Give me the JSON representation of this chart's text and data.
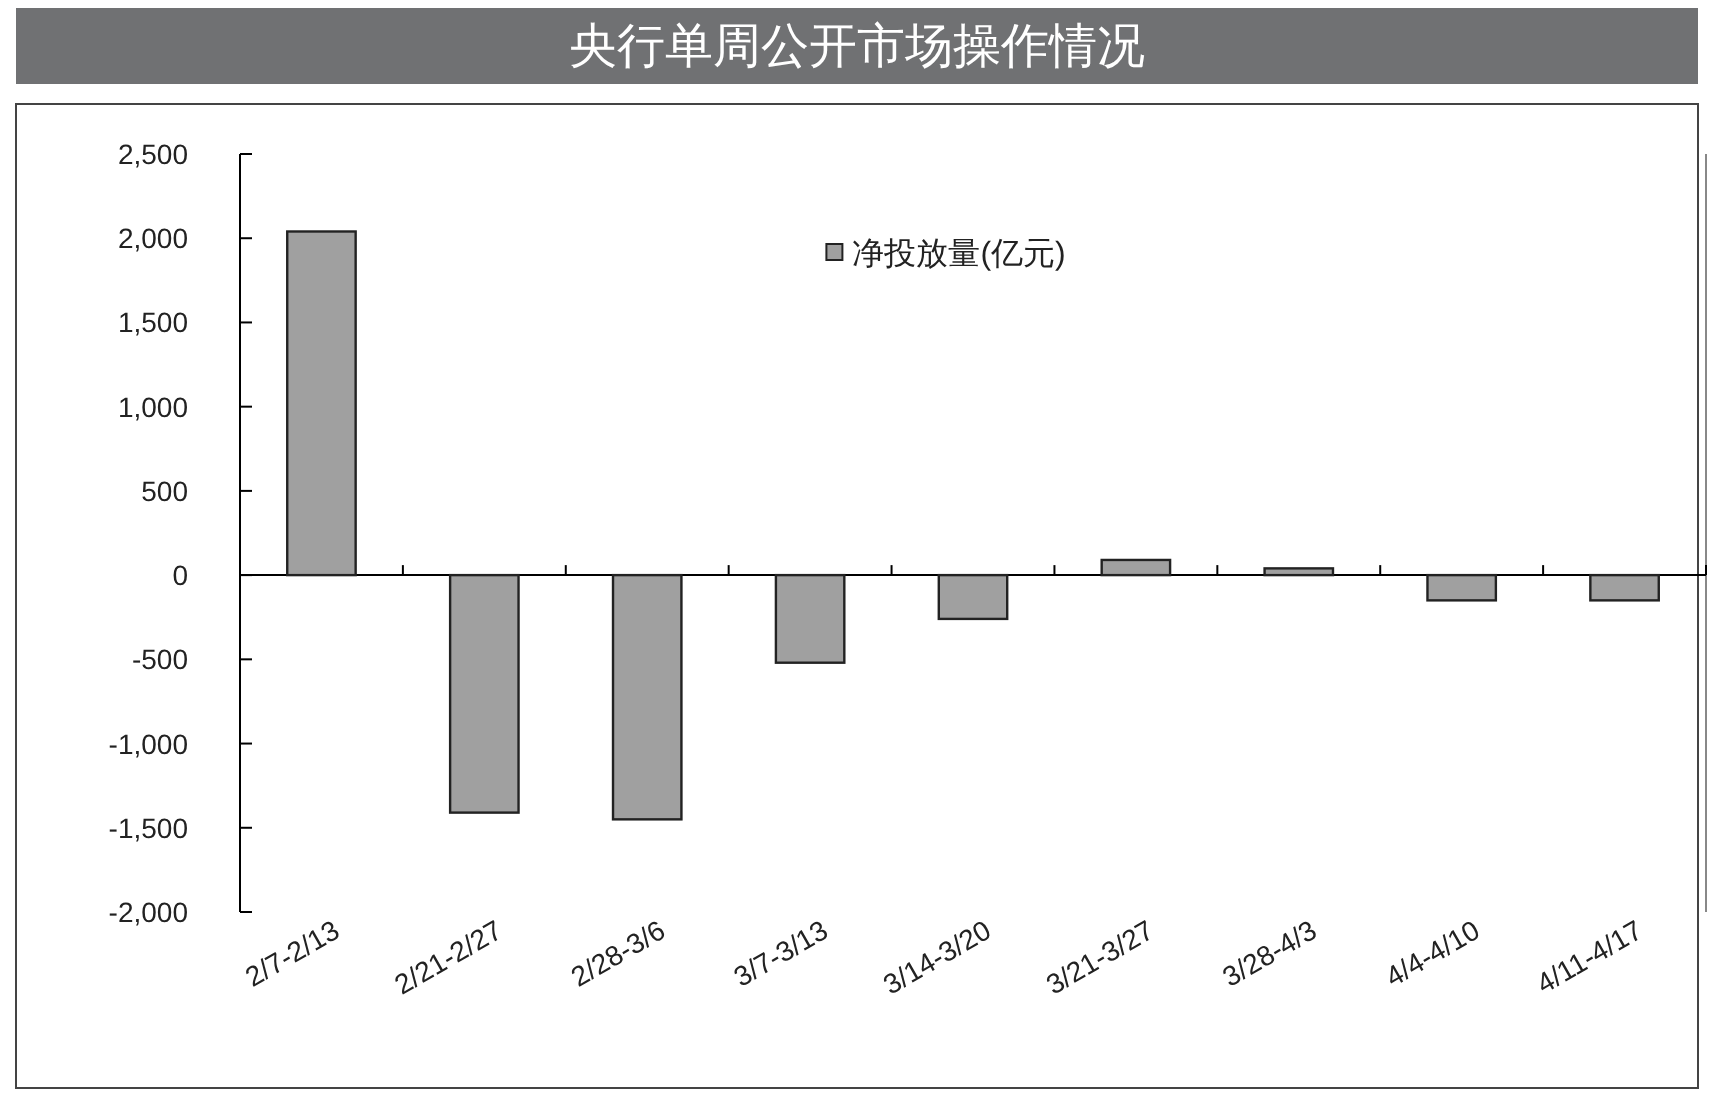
{
  "chart_data": {
    "type": "bar",
    "title": "央行单周公开市场操作情况",
    "categories": [
      "2/7-2/13",
      "2/21-2/27",
      "2/28-3/6",
      "3/7-3/13",
      "3/14-3/20",
      "3/21-3/27",
      "3/28-4/3",
      "4/4-4/10",
      "4/11-4/17"
    ],
    "series": [
      {
        "name": "净投放量(亿元)",
        "color": "#a0a0a0",
        "values": [
          2040,
          -1410,
          -1450,
          -520,
          -260,
          90,
          40,
          -150,
          -150
        ]
      }
    ],
    "ylim": [
      -2000,
      2500
    ],
    "yticks": [
      {
        "value": 2500,
        "label": "2,500"
      },
      {
        "value": 2000,
        "label": "2,000"
      },
      {
        "value": 1500,
        "label": "1,500"
      },
      {
        "value": 1000,
        "label": "1,000"
      },
      500,
      0,
      -500,
      {
        "value": -1000,
        "label": "-1,000"
      },
      {
        "value": -1500,
        "label": "-1,500"
      },
      {
        "value": -2000,
        "label": "-2,000"
      }
    ],
    "legend": "top"
  }
}
